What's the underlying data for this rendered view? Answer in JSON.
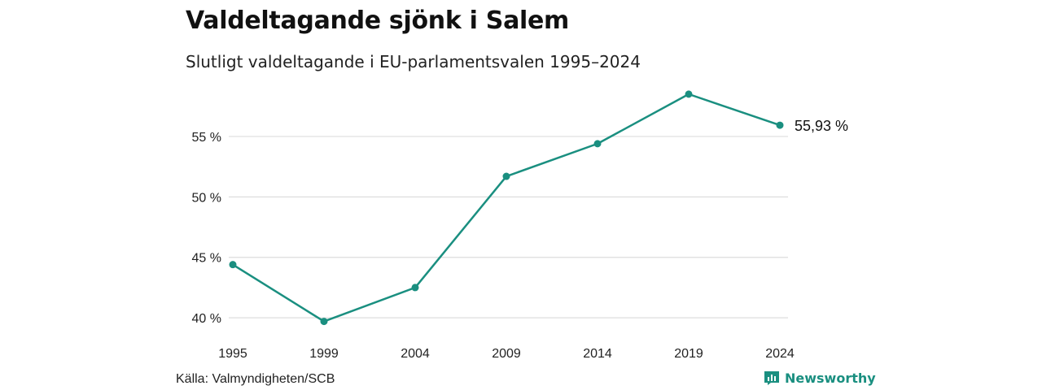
{
  "title": "Valdeltagande sjönk i Salem",
  "subtitle": "Slutligt valdeltagande i EU-parlamentsvalen 1995–2024",
  "source": "Källa: Valmyndigheten/SCB",
  "brand": "Newsworthy",
  "colors": {
    "line": "#1a8f80",
    "grid": "#dddddd",
    "text": "#111111"
  },
  "chart_data": {
    "type": "line",
    "x": [
      "1995",
      "1999",
      "2004",
      "2009",
      "2014",
      "2019",
      "2024"
    ],
    "y": [
      44.4,
      39.7,
      42.5,
      51.7,
      54.4,
      58.5,
      55.93
    ],
    "yticks": [
      40,
      45,
      50,
      55
    ],
    "ytick_labels": [
      "40 %",
      "45 %",
      "50 %",
      "55 %"
    ],
    "ylim": [
      39,
      59.5
    ],
    "last_label": "55,93 %",
    "grid": true,
    "legend": "none"
  }
}
